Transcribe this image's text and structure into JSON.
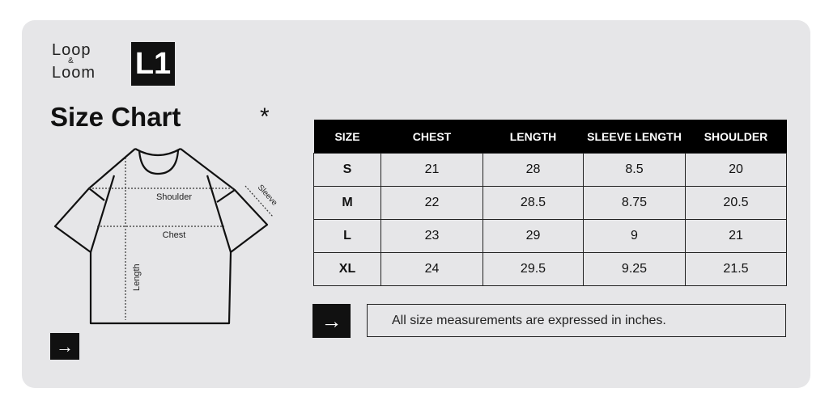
{
  "brand": {
    "line1": "Loop",
    "amp": "&",
    "line2": "Loom",
    "mark": "L1"
  },
  "title": "Size Chart",
  "asterisk": "*",
  "diagram": {
    "shoulder": "Shoulder",
    "chest": "Chest",
    "length": "Length",
    "sleeve": "Sleeve"
  },
  "table": {
    "headers": [
      "SIZE",
      "CHEST",
      "LENGTH",
      "SLEEVE LENGTH",
      "SHOULDER"
    ],
    "rows": [
      [
        "S",
        "21",
        "28",
        "8.5",
        "20"
      ],
      [
        "M",
        "22",
        "28.5",
        "8.75",
        "20.5"
      ],
      [
        "L",
        "23",
        "29",
        "9",
        "21"
      ],
      [
        "XL",
        "24",
        "29.5",
        "9.25",
        "21.5"
      ]
    ]
  },
  "note": "All size measurements are expressed in inches.",
  "icons": {
    "arrow": "→"
  }
}
